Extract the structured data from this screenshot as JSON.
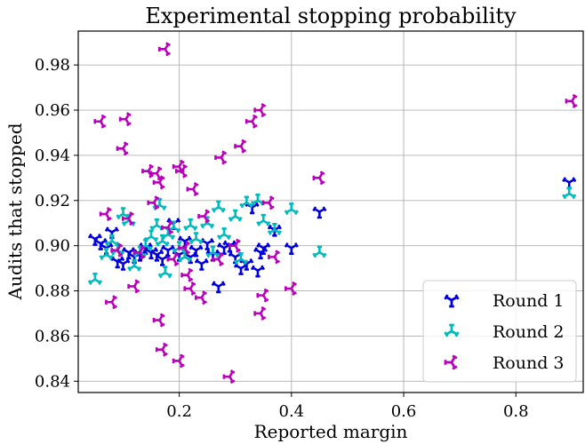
{
  "chart_data": {
    "type": "scatter",
    "title": "Experimental stopping probability",
    "xlabel": "Reported margin",
    "ylabel": "Audits that stopped",
    "xlim": [
      0.02,
      0.92
    ],
    "ylim": [
      0.835,
      0.995
    ],
    "xticks": [
      {
        "value": 0.2,
        "label": "0.2"
      },
      {
        "value": 0.4,
        "label": "0.4"
      },
      {
        "value": 0.6,
        "label": "0.6"
      },
      {
        "value": 0.8,
        "label": "0.8"
      }
    ],
    "yticks": [
      {
        "value": 0.84,
        "label": "0.84"
      },
      {
        "value": 0.86,
        "label": "0.86"
      },
      {
        "value": 0.88,
        "label": "0.88"
      },
      {
        "value": 0.9,
        "label": "0.90"
      },
      {
        "value": 0.92,
        "label": "0.92"
      },
      {
        "value": 0.94,
        "label": "0.94"
      },
      {
        "value": 0.96,
        "label": "0.96"
      },
      {
        "value": 0.98,
        "label": "0.98"
      }
    ],
    "grid": true,
    "legend_position": "bottom-right",
    "series": [
      {
        "name": "Round 1",
        "color": "#0000dd",
        "marker": "tri-down",
        "points": [
          [
            0.05,
            0.903
          ],
          [
            0.06,
            0.901
          ],
          [
            0.07,
            0.899
          ],
          [
            0.08,
            0.906
          ],
          [
            0.09,
            0.893
          ],
          [
            0.1,
            0.892
          ],
          [
            0.11,
            0.897
          ],
          [
            0.12,
            0.895
          ],
          [
            0.13,
            0.896
          ],
          [
            0.14,
            0.899
          ],
          [
            0.15,
            0.897
          ],
          [
            0.16,
            0.896
          ],
          [
            0.17,
            0.894
          ],
          [
            0.18,
            0.898
          ],
          [
            0.19,
            0.91
          ],
          [
            0.2,
            0.896
          ],
          [
            0.21,
            0.902
          ],
          [
            0.22,
            0.895
          ],
          [
            0.23,
            0.898
          ],
          [
            0.24,
            0.892
          ],
          [
            0.25,
            0.901
          ],
          [
            0.26,
            0.896
          ],
          [
            0.27,
            0.882
          ],
          [
            0.28,
            0.899
          ],
          [
            0.29,
            0.9
          ],
          [
            0.3,
            0.895
          ],
          [
            0.31,
            0.89
          ],
          [
            0.32,
            0.892
          ],
          [
            0.34,
            0.889
          ],
          [
            0.345,
            0.897
          ],
          [
            0.35,
            0.899
          ],
          [
            0.33,
            0.917
          ],
          [
            0.37,
            0.907
          ],
          [
            0.4,
            0.899
          ],
          [
            0.45,
            0.915
          ],
          [
            0.895,
            0.928
          ]
        ]
      },
      {
        "name": "Round 2",
        "color": "#00bbbb",
        "marker": "tri-up",
        "points": [
          [
            0.05,
            0.885
          ],
          [
            0.07,
            0.896
          ],
          [
            0.08,
            0.902
          ],
          [
            0.09,
            0.898
          ],
          [
            0.1,
            0.914
          ],
          [
            0.11,
            0.911
          ],
          [
            0.12,
            0.891
          ],
          [
            0.13,
            0.897
          ],
          [
            0.14,
            0.9
          ],
          [
            0.15,
            0.904
          ],
          [
            0.16,
            0.909
          ],
          [
            0.165,
            0.918
          ],
          [
            0.17,
            0.902
          ],
          [
            0.175,
            0.888
          ],
          [
            0.18,
            0.905
          ],
          [
            0.19,
            0.908
          ],
          [
            0.2,
            0.899
          ],
          [
            0.21,
            0.895
          ],
          [
            0.22,
            0.909
          ],
          [
            0.23,
            0.903
          ],
          [
            0.25,
            0.91
          ],
          [
            0.26,
            0.897
          ],
          [
            0.27,
            0.917
          ],
          [
            0.28,
            0.905
          ],
          [
            0.3,
            0.913
          ],
          [
            0.31,
            0.894
          ],
          [
            0.32,
            0.919
          ],
          [
            0.34,
            0.92
          ],
          [
            0.35,
            0.911
          ],
          [
            0.37,
            0.907
          ],
          [
            0.4,
            0.916
          ],
          [
            0.45,
            0.897
          ],
          [
            0.895,
            0.923
          ]
        ]
      },
      {
        "name": "Round 3",
        "color": "#bb00bb",
        "marker": "tri-left",
        "points": [
          [
            0.06,
            0.955
          ],
          [
            0.07,
            0.914
          ],
          [
            0.08,
            0.875
          ],
          [
            0.09,
            0.898
          ],
          [
            0.1,
            0.943
          ],
          [
            0.105,
            0.956
          ],
          [
            0.11,
            0.912
          ],
          [
            0.12,
            0.882
          ],
          [
            0.13,
            0.897
          ],
          [
            0.145,
            0.933
          ],
          [
            0.155,
            0.919
          ],
          [
            0.16,
            0.932
          ],
          [
            0.165,
            0.928
          ],
          [
            0.165,
            0.867
          ],
          [
            0.17,
            0.854
          ],
          [
            0.175,
            0.987
          ],
          [
            0.18,
            0.908
          ],
          [
            0.19,
            0.894
          ],
          [
            0.2,
            0.849
          ],
          [
            0.2,
            0.935
          ],
          [
            0.205,
            0.933
          ],
          [
            0.21,
            0.899
          ],
          [
            0.215,
            0.887
          ],
          [
            0.22,
            0.881
          ],
          [
            0.225,
            0.925
          ],
          [
            0.24,
            0.877
          ],
          [
            0.245,
            0.913
          ],
          [
            0.27,
            0.894
          ],
          [
            0.275,
            0.939
          ],
          [
            0.29,
            0.842
          ],
          [
            0.3,
            0.9
          ],
          [
            0.31,
            0.944
          ],
          [
            0.33,
            0.955
          ],
          [
            0.345,
            0.96
          ],
          [
            0.345,
            0.87
          ],
          [
            0.35,
            0.878
          ],
          [
            0.36,
            0.919
          ],
          [
            0.37,
            0.895
          ],
          [
            0.4,
            0.881
          ],
          [
            0.45,
            0.93
          ],
          [
            0.9,
            0.964
          ]
        ]
      }
    ]
  }
}
